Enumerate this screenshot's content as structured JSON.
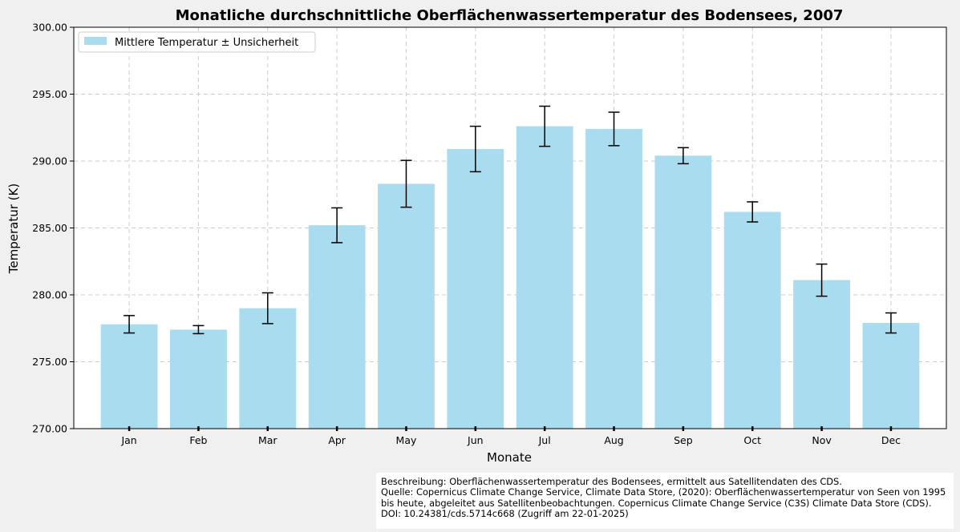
{
  "chart_data": {
    "type": "bar",
    "title": "Monatliche durchschnittliche Oberflächenwassertemperatur des Bodensees, 2007",
    "xlabel": "Monate",
    "ylabel": "Temperatur (K)",
    "ylim": [
      270,
      300
    ],
    "yticks": [
      "270.00",
      "275.00",
      "280.00",
      "285.00",
      "290.00",
      "295.00",
      "300.00"
    ],
    "grid": true,
    "legend": {
      "position": "top-left",
      "entries": [
        "Mittlere Temperatur ± Unsicherheit"
      ]
    },
    "categories": [
      "Jan",
      "Feb",
      "Mar",
      "Apr",
      "May",
      "Jun",
      "Jul",
      "Aug",
      "Sep",
      "Oct",
      "Nov",
      "Dec"
    ],
    "values": [
      277.8,
      277.4,
      279.0,
      285.2,
      288.3,
      290.9,
      292.6,
      292.4,
      290.4,
      286.2,
      281.1,
      277.9
    ],
    "errors": [
      0.65,
      0.3,
      1.15,
      1.3,
      1.75,
      1.7,
      1.5,
      1.25,
      0.6,
      0.75,
      1.2,
      0.75
    ],
    "bar_color": "#a8dcee"
  },
  "description": {
    "line1": "Beschreibung: Oberflächenwassertemperatur des Bodensees, ermittelt aus Satellitendaten des CDS.",
    "line2": "Quelle: Copernicus Climate Change Service, Climate Data Store, (2020): Oberflächenwassertemperatur von Seen von 1995 bis heute, abgeleitet aus Satellitenbeobachtungen. Copernicus Climate Change Service (C3S) Climate Data Store (CDS). DOI: 10.24381/cds.5714c668 (Zugriff am 22-01-2025)"
  }
}
